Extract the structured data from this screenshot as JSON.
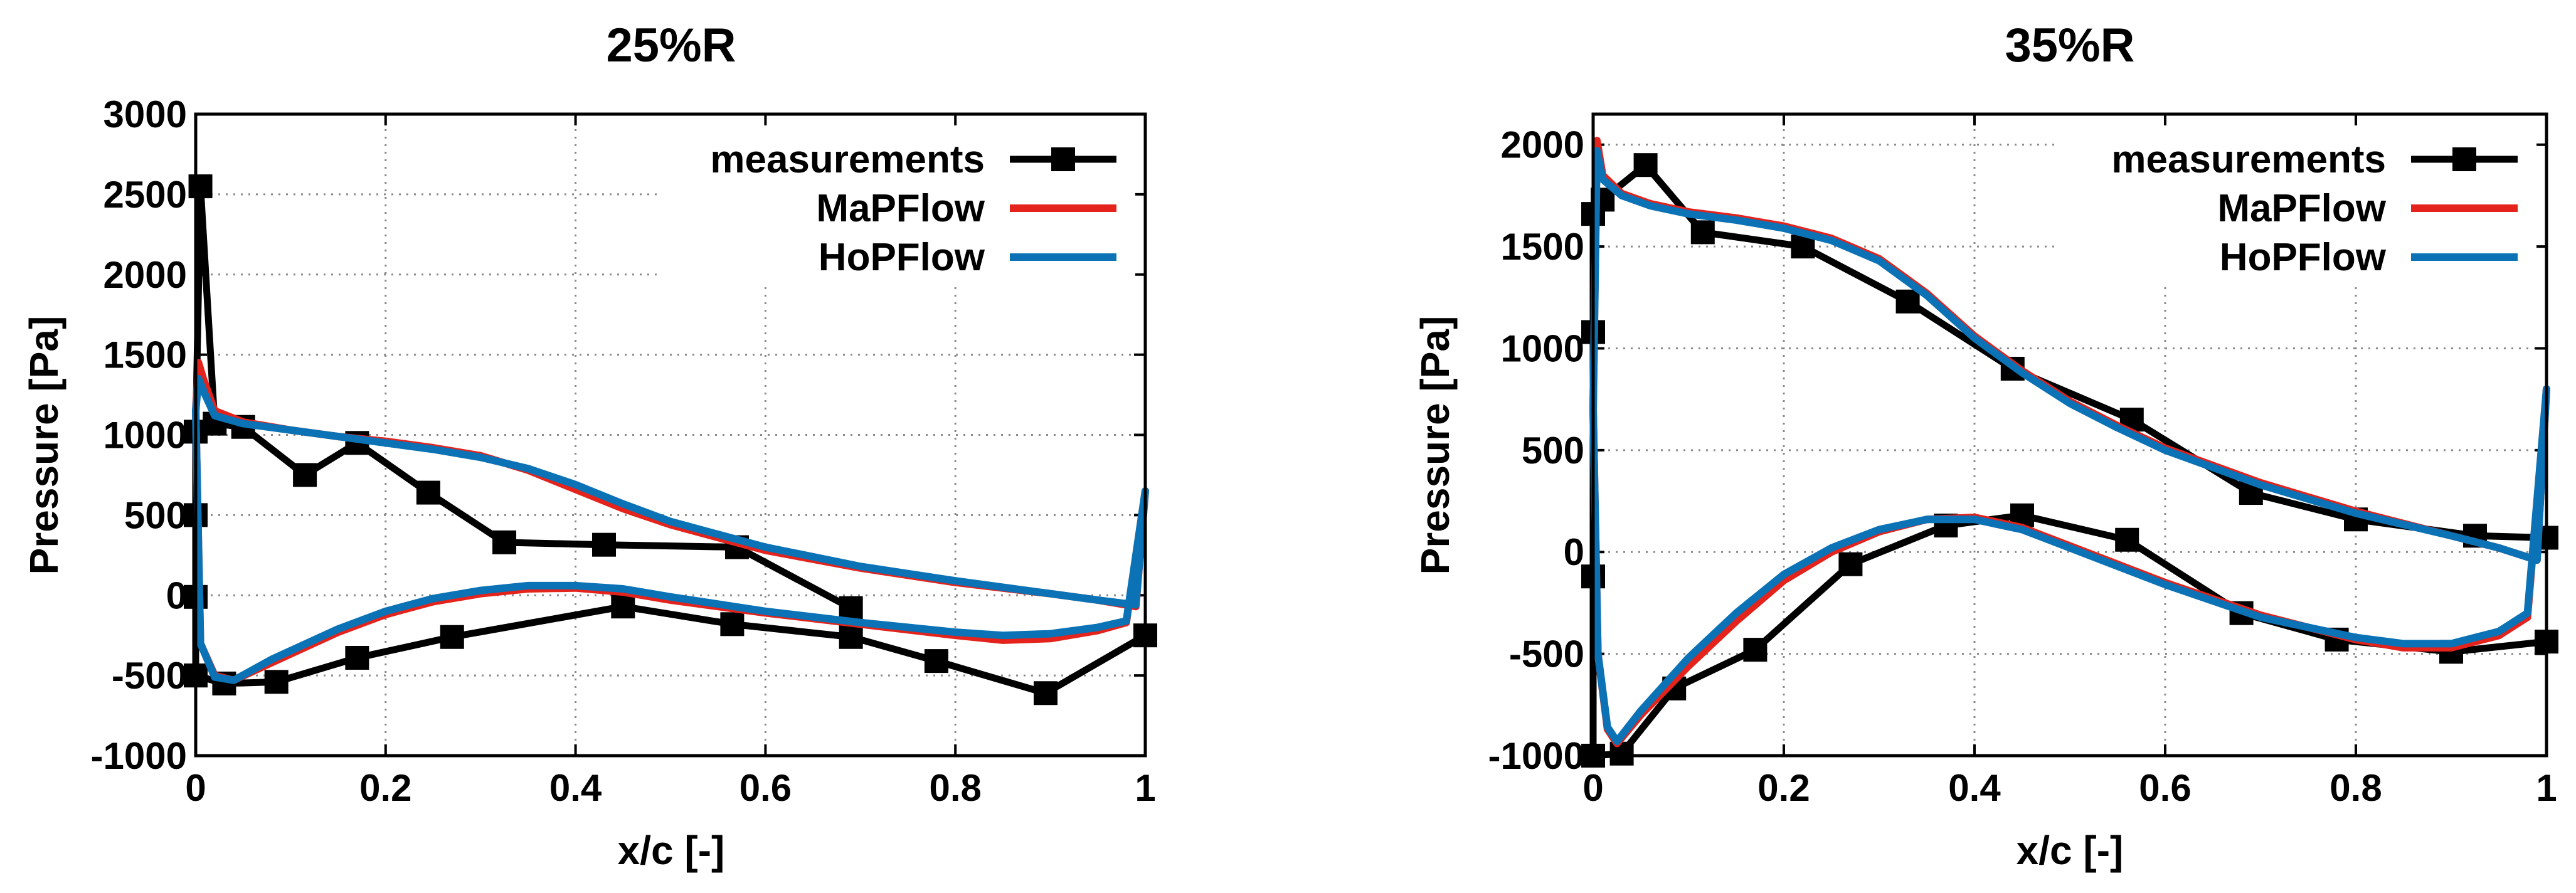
{
  "colors": {
    "measurements": "#000000",
    "mapflow": "#e3231c",
    "hopflow": "#0a72b5",
    "grid": "#8a8a8a"
  },
  "chart_data": [
    {
      "type": "line",
      "title": "25%R",
      "xlabel": "x/c [-]",
      "ylabel": "Pressure [Pa]",
      "xlim": [
        0,
        1
      ],
      "ylim": [
        -1000,
        3000
      ],
      "xticks": [
        0,
        0.2,
        0.4,
        0.6,
        0.8,
        1
      ],
      "xtick_labels": [
        "0",
        "0.2",
        "0.4",
        "0.6",
        "0.8",
        "1"
      ],
      "yticks": [
        -1000,
        -500,
        0,
        500,
        1000,
        1500,
        2000,
        2500,
        3000
      ],
      "ytick_labels": [
        "-1000",
        "-500",
        "0",
        "500",
        "1000",
        "1500",
        "2000",
        "2500",
        "3000"
      ],
      "grid": true,
      "legend_position": "top-right",
      "series": [
        {
          "name": "measurements",
          "style": "line-square-markers",
          "segments": [
            [
              [
                0,
                -500
              ],
              [
                0,
                -10
              ],
              [
                0,
                500
              ],
              [
                0,
                1020
              ],
              [
                0.005,
                2550
              ],
              [
                0.02,
                1070
              ],
              [
                0.05,
                1050
              ],
              [
                0.115,
                750
              ],
              [
                0.17,
                950
              ],
              [
                0.245,
                640
              ],
              [
                0.325,
                330
              ],
              [
                0.43,
                315
              ],
              [
                0.57,
                300
              ],
              [
                0.69,
                -80
              ]
            ],
            [
              [
                0,
                -500
              ],
              [
                0.03,
                -550
              ],
              [
                0.085,
                -540
              ],
              [
                0.17,
                -390
              ],
              [
                0.27,
                -260
              ],
              [
                0.45,
                -70
              ],
              [
                0.565,
                -180
              ],
              [
                0.69,
                -260
              ],
              [
                0.78,
                -410
              ],
              [
                0.895,
                -610
              ],
              [
                1,
                -250
              ]
            ]
          ]
        },
        {
          "name": "MaPFlow",
          "style": "line",
          "segments": [
            [
              [
                0,
                1150
              ],
              [
                0.003,
                1450
              ],
              [
                0.008,
                1350
              ],
              [
                0.02,
                1150
              ],
              [
                0.05,
                1080
              ],
              [
                0.1,
                1030
              ],
              [
                0.15,
                990
              ],
              [
                0.2,
                960
              ],
              [
                0.25,
                920
              ],
              [
                0.3,
                870
              ],
              [
                0.35,
                780
              ],
              [
                0.4,
                660
              ],
              [
                0.45,
                540
              ],
              [
                0.5,
                440
              ],
              [
                0.55,
                360
              ],
              [
                0.6,
                280
              ],
              [
                0.7,
                170
              ],
              [
                0.8,
                80
              ],
              [
                0.9,
                10
              ],
              [
                0.95,
                -30
              ],
              [
                0.99,
                -70
              ],
              [
                1,
                650
              ]
            ],
            [
              [
                0,
                1150
              ],
              [
                0.005,
                -300
              ],
              [
                0.02,
                -500
              ],
              [
                0.04,
                -530
              ],
              [
                0.08,
                -420
              ],
              [
                0.15,
                -230
              ],
              [
                0.2,
                -120
              ],
              [
                0.25,
                -40
              ],
              [
                0.3,
                10
              ],
              [
                0.35,
                40
              ],
              [
                0.4,
                45
              ],
              [
                0.45,
                20
              ],
              [
                0.5,
                -30
              ],
              [
                0.6,
                -110
              ],
              [
                0.7,
                -180
              ],
              [
                0.8,
                -250
              ],
              [
                0.85,
                -280
              ],
              [
                0.9,
                -270
              ],
              [
                0.95,
                -220
              ],
              [
                0.98,
                -170
              ],
              [
                1,
                650
              ]
            ]
          ]
        },
        {
          "name": "HoPFlow",
          "style": "line",
          "segments": [
            [
              [
                0,
                1150
              ],
              [
                0.003,
                1350
              ],
              [
                0.01,
                1250
              ],
              [
                0.02,
                1120
              ],
              [
                0.05,
                1070
              ],
              [
                0.1,
                1030
              ],
              [
                0.15,
                990
              ],
              [
                0.2,
                950
              ],
              [
                0.25,
                910
              ],
              [
                0.3,
                860
              ],
              [
                0.35,
                790
              ],
              [
                0.4,
                690
              ],
              [
                0.45,
                570
              ],
              [
                0.5,
                460
              ],
              [
                0.55,
                380
              ],
              [
                0.6,
                300
              ],
              [
                0.7,
                180
              ],
              [
                0.8,
                90
              ],
              [
                0.9,
                10
              ],
              [
                0.95,
                -30
              ],
              [
                0.99,
                -60
              ],
              [
                1,
                650
              ]
            ],
            [
              [
                0,
                1150
              ],
              [
                0.005,
                -300
              ],
              [
                0.02,
                -510
              ],
              [
                0.04,
                -530
              ],
              [
                0.08,
                -400
              ],
              [
                0.15,
                -210
              ],
              [
                0.2,
                -100
              ],
              [
                0.25,
                -20
              ],
              [
                0.3,
                30
              ],
              [
                0.35,
                60
              ],
              [
                0.4,
                60
              ],
              [
                0.45,
                40
              ],
              [
                0.5,
                -10
              ],
              [
                0.6,
                -100
              ],
              [
                0.7,
                -170
              ],
              [
                0.8,
                -230
              ],
              [
                0.85,
                -250
              ],
              [
                0.9,
                -240
              ],
              [
                0.95,
                -200
              ],
              [
                0.98,
                -160
              ],
              [
                1,
                650
              ]
            ]
          ]
        }
      ]
    },
    {
      "type": "line",
      "title": "35%R",
      "xlabel": "x/c [-]",
      "ylabel": "Pressure [Pa]",
      "xlim": [
        0,
        1
      ],
      "ylim": [
        -1000,
        2150
      ],
      "xticks": [
        0,
        0.2,
        0.4,
        0.6,
        0.8,
        1
      ],
      "xtick_labels": [
        "0",
        "0.2",
        "0.4",
        "0.6",
        "0.8",
        "1"
      ],
      "yticks": [
        -1000,
        -500,
        0,
        500,
        1000,
        1500,
        2000
      ],
      "ytick_labels": [
        "-1000",
        "-500",
        "0",
        "500",
        "1000",
        "1500",
        "2000"
      ],
      "grid": true,
      "legend_position": "top-right",
      "series": [
        {
          "name": "measurements",
          "style": "line-square-markers",
          "segments": [
            [
              [
                0,
                -1000
              ],
              [
                0,
                -120
              ],
              [
                0,
                1080
              ],
              [
                0,
                1660
              ],
              [
                0.01,
                1730
              ],
              [
                0.055,
                1900
              ],
              [
                0.115,
                1570
              ],
              [
                0.22,
                1500
              ],
              [
                0.33,
                1230
              ],
              [
                0.44,
                900
              ],
              [
                0.565,
                650
              ],
              [
                0.69,
                290
              ],
              [
                0.8,
                160
              ],
              [
                0.925,
                80
              ],
              [
                1,
                70
              ]
            ],
            [
              [
                0,
                -1000
              ],
              [
                0.03,
                -990
              ],
              [
                0.085,
                -670
              ],
              [
                0.17,
                -480
              ],
              [
                0.27,
                -60
              ],
              [
                0.37,
                130
              ],
              [
                0.45,
                180
              ],
              [
                0.56,
                60
              ],
              [
                0.68,
                -300
              ],
              [
                0.78,
                -430
              ],
              [
                0.9,
                -490
              ],
              [
                1,
                -440
              ]
            ]
          ]
        },
        {
          "name": "MaPFlow",
          "style": "line",
          "segments": [
            [
              [
                0,
                700
              ],
              [
                0.004,
                2020
              ],
              [
                0.01,
                1850
              ],
              [
                0.03,
                1760
              ],
              [
                0.06,
                1710
              ],
              [
                0.1,
                1670
              ],
              [
                0.15,
                1640
              ],
              [
                0.2,
                1600
              ],
              [
                0.25,
                1540
              ],
              [
                0.3,
                1440
              ],
              [
                0.35,
                1270
              ],
              [
                0.4,
                1060
              ],
              [
                0.45,
                890
              ],
              [
                0.5,
                740
              ],
              [
                0.55,
                620
              ],
              [
                0.6,
                510
              ],
              [
                0.7,
                340
              ],
              [
                0.8,
                200
              ],
              [
                0.9,
                80
              ],
              [
                0.95,
                20
              ],
              [
                0.99,
                -40
              ],
              [
                1,
                800
              ]
            ],
            [
              [
                0,
                700
              ],
              [
                0.005,
                -500
              ],
              [
                0.015,
                -870
              ],
              [
                0.025,
                -940
              ],
              [
                0.05,
                -800
              ],
              [
                0.1,
                -560
              ],
              [
                0.15,
                -340
              ],
              [
                0.2,
                -140
              ],
              [
                0.25,
                0
              ],
              [
                0.3,
                100
              ],
              [
                0.35,
                160
              ],
              [
                0.4,
                170
              ],
              [
                0.45,
                120
              ],
              [
                0.5,
                30
              ],
              [
                0.6,
                -150
              ],
              [
                0.7,
                -310
              ],
              [
                0.8,
                -430
              ],
              [
                0.85,
                -470
              ],
              [
                0.9,
                -470
              ],
              [
                0.95,
                -410
              ],
              [
                0.98,
                -320
              ],
              [
                1,
                800
              ]
            ]
          ]
        },
        {
          "name": "HoPFlow",
          "style": "line",
          "segments": [
            [
              [
                0,
                700
              ],
              [
                0.004,
                1970
              ],
              [
                0.01,
                1830
              ],
              [
                0.03,
                1750
              ],
              [
                0.06,
                1700
              ],
              [
                0.1,
                1660
              ],
              [
                0.15,
                1630
              ],
              [
                0.2,
                1590
              ],
              [
                0.25,
                1530
              ],
              [
                0.3,
                1430
              ],
              [
                0.35,
                1260
              ],
              [
                0.4,
                1050
              ],
              [
                0.45,
                880
              ],
              [
                0.5,
                730
              ],
              [
                0.55,
                610
              ],
              [
                0.6,
                500
              ],
              [
                0.7,
                330
              ],
              [
                0.8,
                190
              ],
              [
                0.9,
                80
              ],
              [
                0.95,
                20
              ],
              [
                0.99,
                -40
              ],
              [
                1,
                800
              ]
            ],
            [
              [
                0,
                700
              ],
              [
                0.005,
                -500
              ],
              [
                0.015,
                -860
              ],
              [
                0.025,
                -930
              ],
              [
                0.05,
                -780
              ],
              [
                0.1,
                -520
              ],
              [
                0.15,
                -300
              ],
              [
                0.2,
                -110
              ],
              [
                0.25,
                20
              ],
              [
                0.3,
                110
              ],
              [
                0.35,
                160
              ],
              [
                0.4,
                160
              ],
              [
                0.45,
                110
              ],
              [
                0.5,
                20
              ],
              [
                0.6,
                -160
              ],
              [
                0.7,
                -320
              ],
              [
                0.8,
                -420
              ],
              [
                0.85,
                -450
              ],
              [
                0.9,
                -450
              ],
              [
                0.95,
                -390
              ],
              [
                0.98,
                -300
              ],
              [
                1,
                800
              ]
            ]
          ]
        }
      ]
    }
  ]
}
